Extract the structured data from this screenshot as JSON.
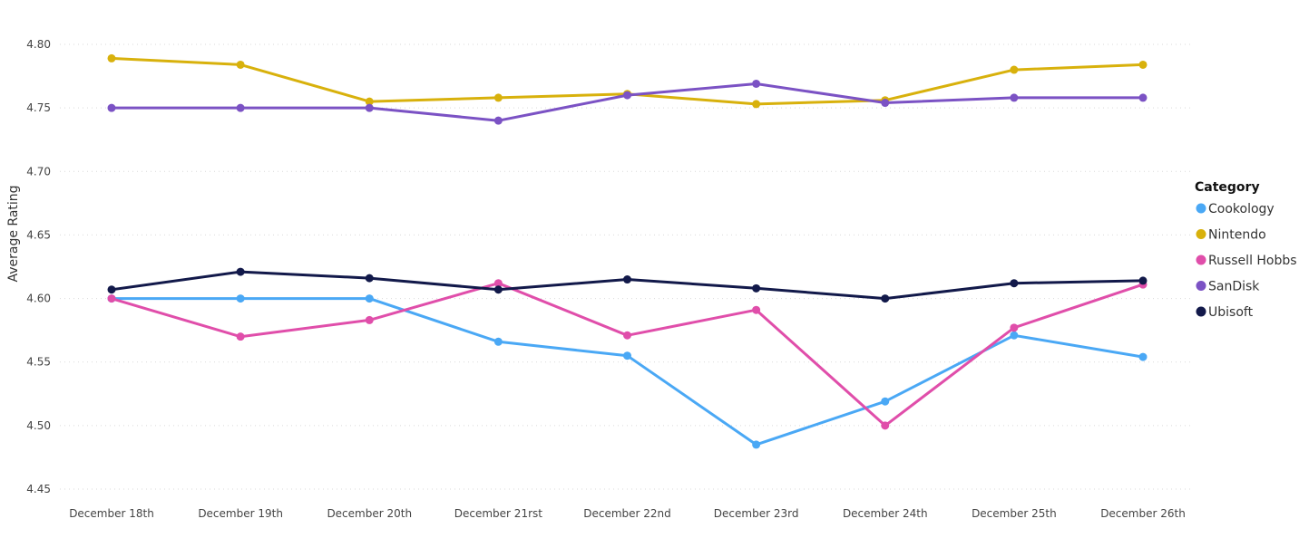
{
  "chart_data": {
    "type": "line",
    "ylabel": "Average Rating",
    "xlabel": "",
    "categories": [
      "December 18th",
      "December 19th",
      "December 20th",
      "December 21rst",
      "December 22nd",
      "December 23rd",
      "December 24th",
      "December 25th",
      "December 26th"
    ],
    "ylim": [
      4.45,
      4.8
    ],
    "yticks": [
      "4.45",
      "4.50",
      "4.55",
      "4.60",
      "4.65",
      "4.70",
      "4.75",
      "4.80"
    ],
    "grid": true,
    "legend": {
      "title": "Category",
      "position": "right"
    },
    "series": [
      {
        "name": "Cookology",
        "color": "#4aa8f5",
        "values": [
          4.6,
          4.6,
          4.6,
          4.566,
          4.555,
          4.485,
          4.519,
          4.571,
          4.554
        ]
      },
      {
        "name": "Nintendo",
        "color": "#d8b10c",
        "values": [
          4.789,
          4.784,
          4.755,
          4.758,
          4.761,
          4.753,
          4.756,
          4.78,
          4.784
        ]
      },
      {
        "name": "Russell Hobbs",
        "color": "#e04eaa",
        "values": [
          4.6,
          4.57,
          4.583,
          4.612,
          4.571,
          4.591,
          4.5,
          4.577,
          4.611
        ]
      },
      {
        "name": "SanDisk",
        "color": "#7b52c4",
        "values": [
          4.75,
          4.75,
          4.75,
          4.74,
          4.76,
          4.769,
          4.754,
          4.758,
          4.758
        ]
      },
      {
        "name": "Ubisoft",
        "color": "#12194a",
        "values": [
          4.607,
          4.621,
          4.616,
          4.607,
          4.615,
          4.608,
          4.6,
          4.612,
          4.614
        ]
      }
    ]
  }
}
